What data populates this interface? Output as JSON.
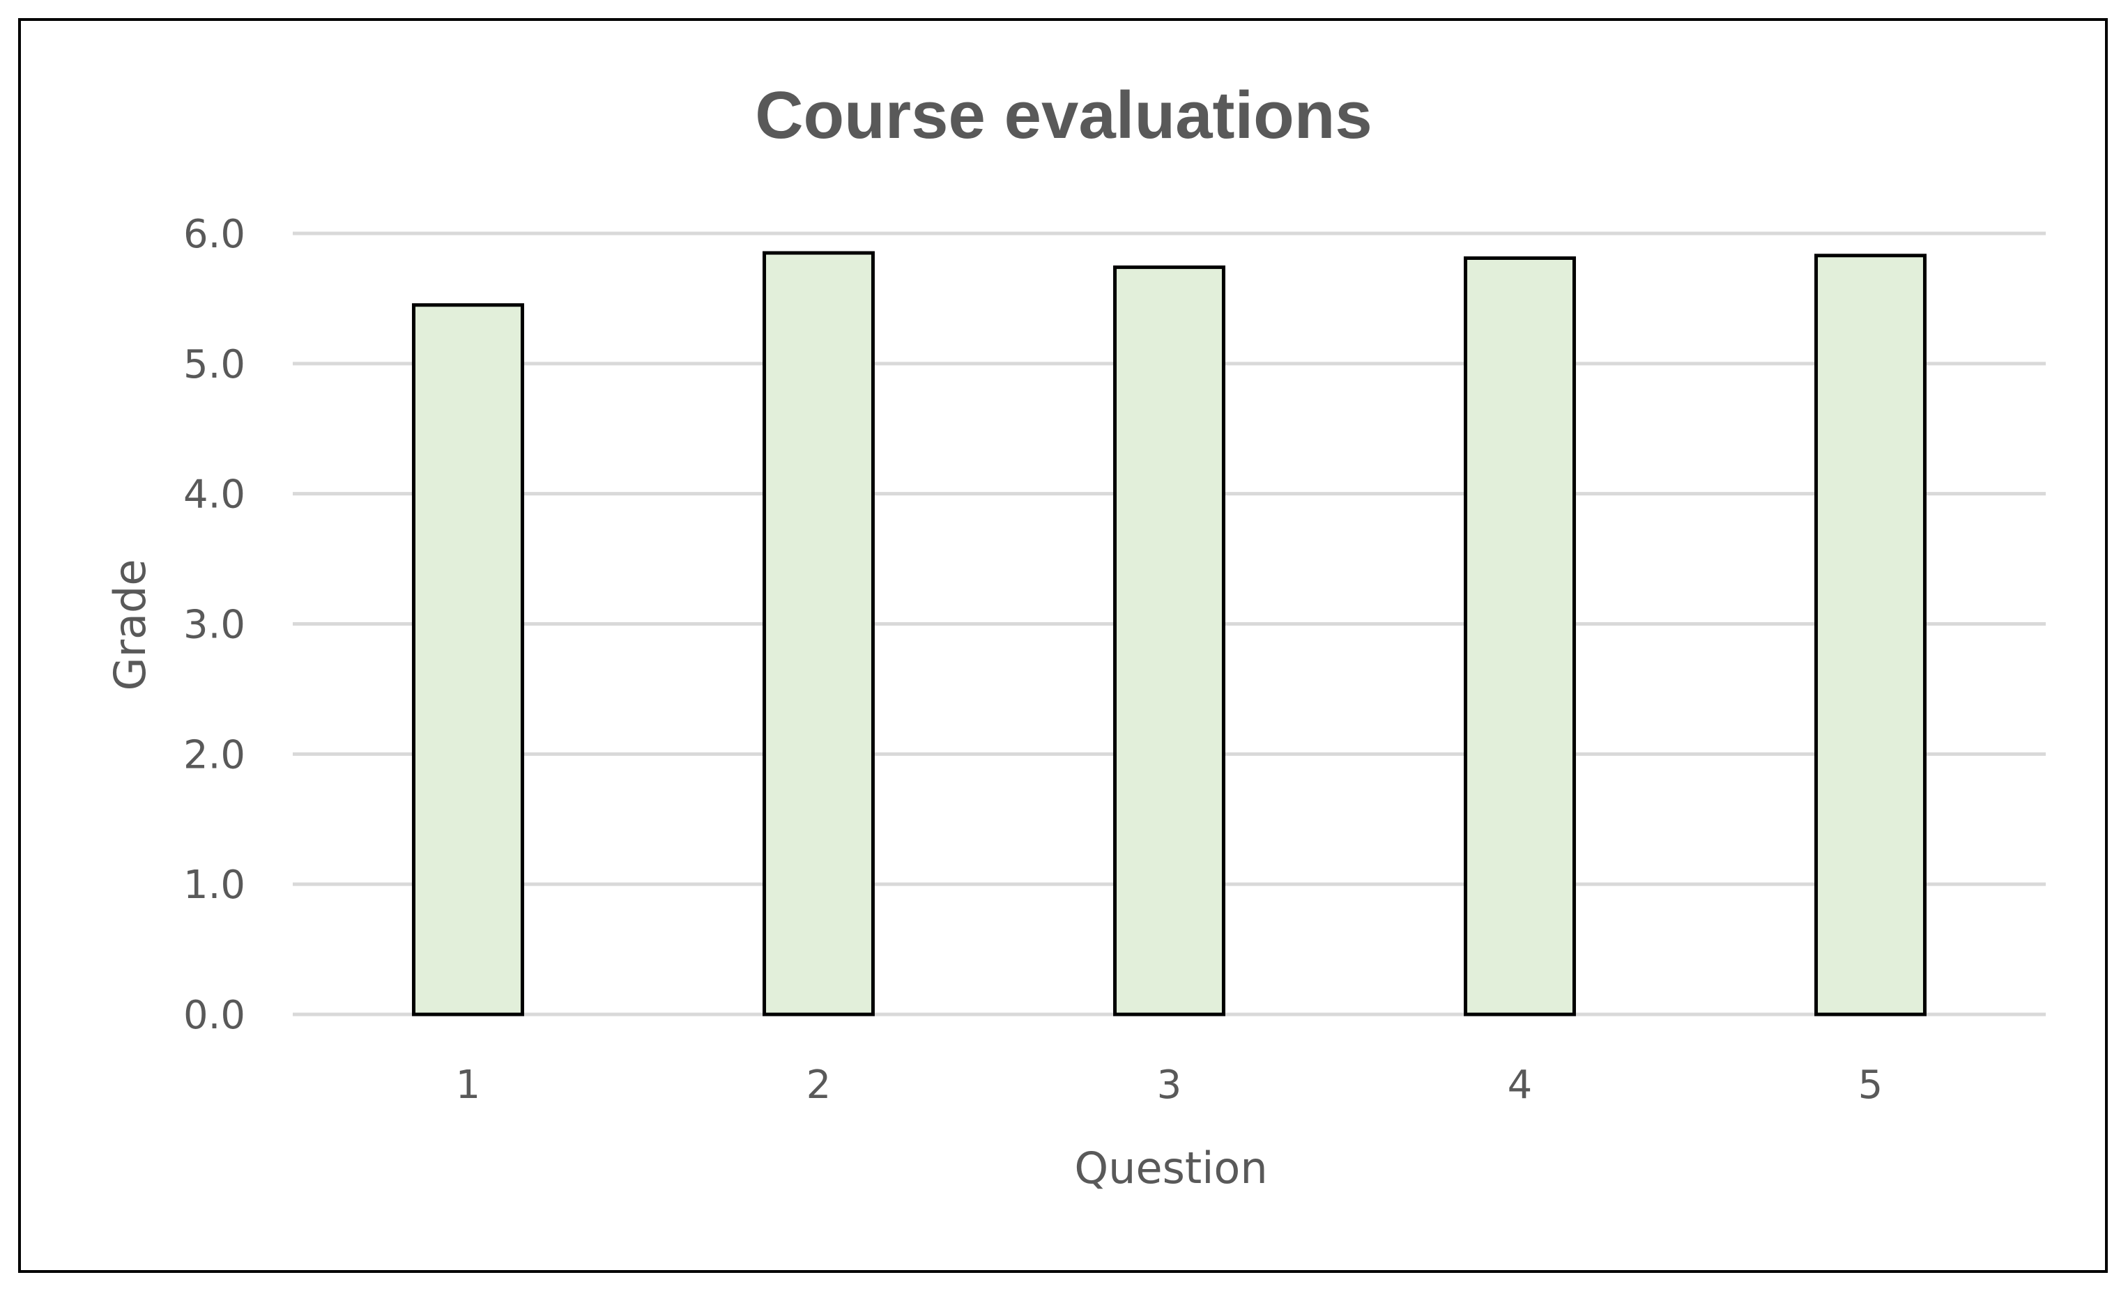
{
  "chart_data": {
    "type": "bar",
    "title": "Course evaluations",
    "xlabel": "Question",
    "ylabel": "Grade",
    "categories": [
      "1",
      "2",
      "3",
      "4",
      "5"
    ],
    "values": [
      5.45,
      5.85,
      5.74,
      5.81,
      5.83
    ],
    "ylim": [
      0,
      6
    ],
    "yticks": [
      "0.0",
      "1.0",
      "2.0",
      "3.0",
      "4.0",
      "5.0",
      "6.0"
    ],
    "grid": true,
    "legend": "none",
    "colors": {
      "bar_fill": "#e2efda",
      "bar_stroke": "#000000",
      "gridline": "#d9d9d9",
      "text": "#595959"
    }
  }
}
